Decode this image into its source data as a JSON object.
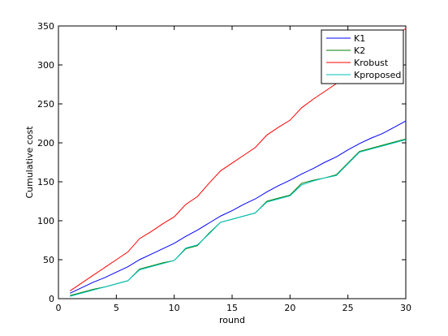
{
  "chart_data": {
    "type": "line",
    "xlabel": "round",
    "ylabel": "Cumulative cost",
    "xlim": [
      0,
      30
    ],
    "ylim": [
      0,
      350
    ],
    "xticks": [
      0,
      5,
      10,
      15,
      20,
      25,
      30
    ],
    "yticks": [
      0,
      50,
      100,
      150,
      200,
      250,
      300,
      350
    ],
    "grid": false,
    "legend": "top-right",
    "x": [
      1,
      2,
      3,
      4,
      5,
      6,
      7,
      8,
      9,
      10,
      11,
      12,
      13,
      14,
      15,
      16,
      17,
      18,
      19,
      20,
      21,
      22,
      23,
      24,
      25,
      26,
      27,
      28,
      29,
      30
    ],
    "series": [
      {
        "name": "K1",
        "color": "#0000ff",
        "values": [
          7,
          14,
          21,
          27,
          34,
          41,
          50,
          57,
          64,
          71,
          80,
          88,
          97,
          106,
          113,
          121,
          128,
          137,
          145,
          152,
          160,
          167,
          175,
          182,
          191,
          199,
          206,
          212,
          220,
          228
        ]
      },
      {
        "name": "K2",
        "color": "#008000",
        "values": [
          4,
          8,
          12,
          15,
          19,
          23,
          38,
          42,
          46,
          49,
          64,
          68,
          84,
          98,
          102,
          106,
          110,
          125,
          129,
          133,
          148,
          152,
          155,
          159,
          174,
          189,
          193,
          197,
          201,
          205
        ]
      },
      {
        "name": "Krobust",
        "color": "#ff0000",
        "values": [
          10,
          20,
          30,
          40,
          50,
          60,
          77,
          86,
          96,
          105,
          121,
          131,
          148,
          164,
          174,
          184,
          194,
          210,
          220,
          229,
          245,
          256,
          266,
          276,
          290,
          303,
          313,
          323,
          335,
          347
        ]
      },
      {
        "name": "Kproposed",
        "color": "#00bfbf",
        "values": [
          3,
          7,
          11,
          15,
          19,
          23,
          37,
          41,
          45,
          49,
          65,
          69,
          83,
          98,
          102,
          106,
          110,
          124,
          128,
          132,
          146,
          151,
          155,
          158,
          173,
          188,
          192,
          196,
          200,
          204
        ]
      }
    ]
  }
}
